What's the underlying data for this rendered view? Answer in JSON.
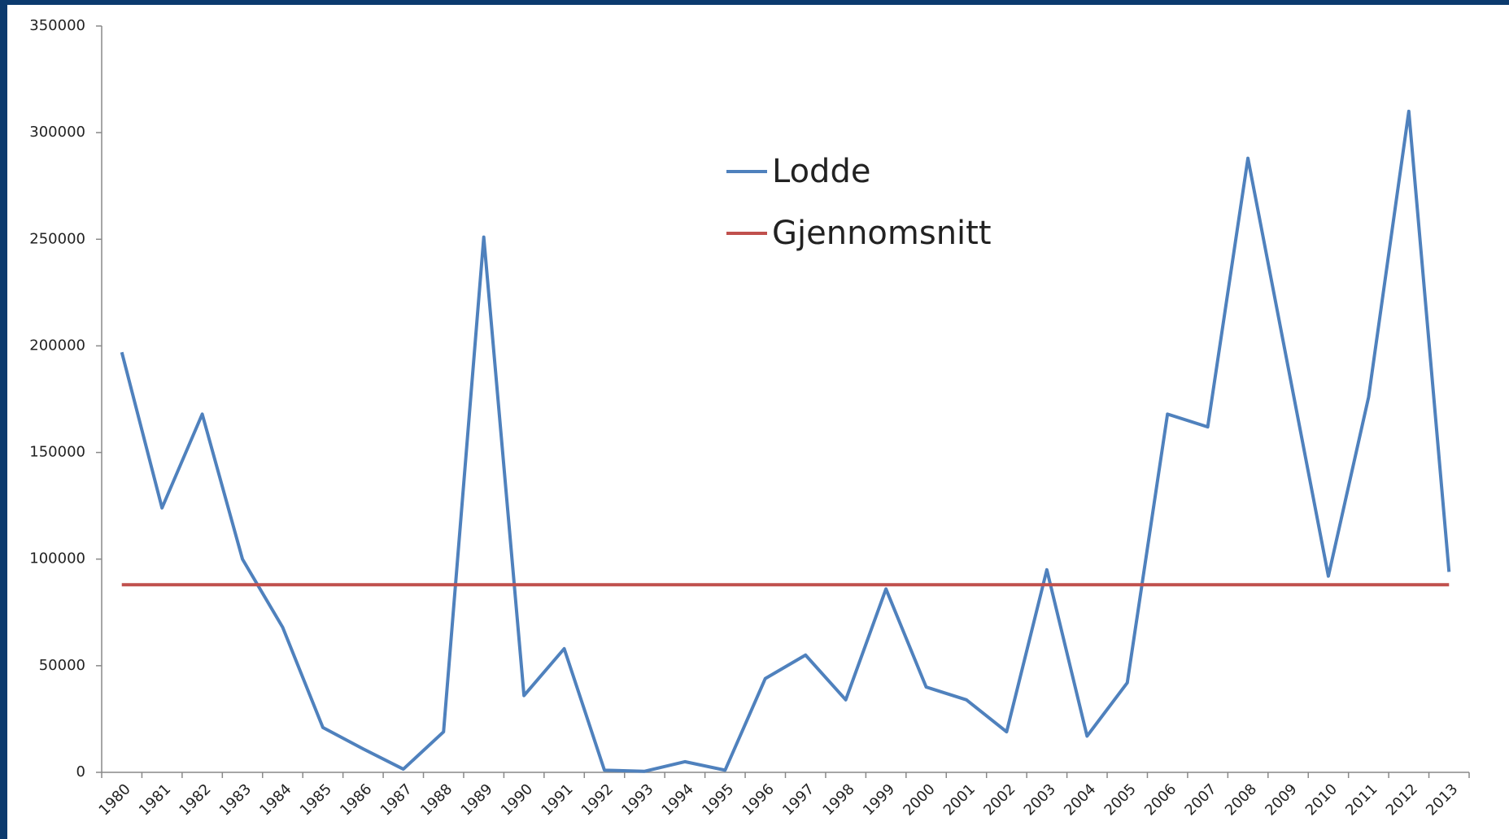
{
  "chart_data": {
    "type": "line",
    "categories": [
      "1980",
      "1981",
      "1982",
      "1983",
      "1984",
      "1985",
      "1986",
      "1987",
      "1988",
      "1989",
      "1990",
      "1991",
      "1992",
      "1993",
      "1994",
      "1995",
      "1996",
      "1997",
      "1998",
      "1999",
      "2000",
      "2001",
      "2002",
      "2003",
      "2004",
      "2005",
      "2006",
      "2007",
      "2008",
      "2009",
      "2010",
      "2011",
      "2012",
      "2013"
    ],
    "series": [
      {
        "name": "Lodde",
        "color": "#4f81bd",
        "values": [
          197000,
          124000,
          168000,
          100000,
          68000,
          21000,
          11000,
          1500,
          19000,
          251000,
          36000,
          58000,
          1000,
          500,
          5000,
          1000,
          44000,
          55000,
          34000,
          86000,
          40000,
          34000,
          19000,
          95000,
          17000,
          42000,
          168000,
          162000,
          288000,
          190000,
          92000,
          176000,
          310000,
          94000
        ]
      },
      {
        "name": "Gjennomsnitt",
        "color": "#c0504d",
        "values": [
          88000,
          88000,
          88000,
          88000,
          88000,
          88000,
          88000,
          88000,
          88000,
          88000,
          88000,
          88000,
          88000,
          88000,
          88000,
          88000,
          88000,
          88000,
          88000,
          88000,
          88000,
          88000,
          88000,
          88000,
          88000,
          88000,
          88000,
          88000,
          88000,
          88000,
          88000,
          88000,
          88000,
          88000
        ]
      }
    ],
    "ylim": [
      0,
      350000
    ],
    "yticks": [
      0,
      50000,
      100000,
      150000,
      200000,
      250000,
      300000,
      350000
    ],
    "legend": "upper center"
  }
}
